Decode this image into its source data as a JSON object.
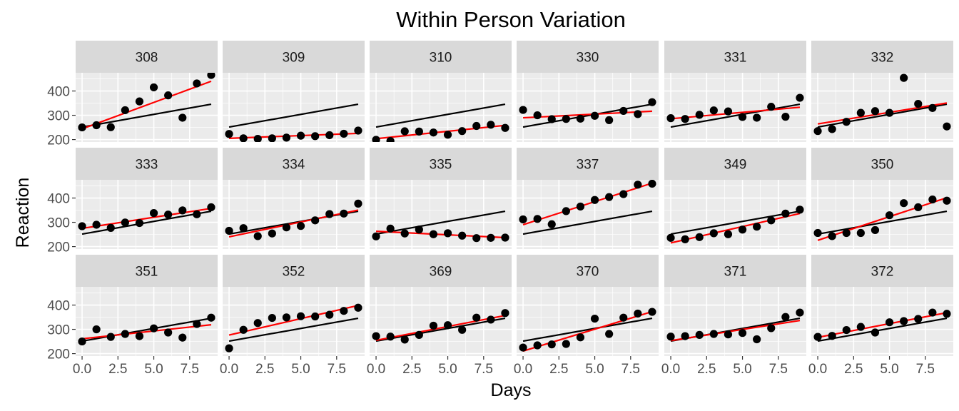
{
  "chart_data": {
    "type": "scatter",
    "title": "Within Person Variation",
    "xlabel": "Days",
    "ylabel": "Reaction",
    "facet_layout": {
      "rows": 3,
      "cols": 6
    },
    "xlim": [
      -0.45,
      9.45
    ],
    "ylim": [
      190,
      475
    ],
    "x_ticks": [
      0,
      2.5,
      5,
      7.5
    ],
    "x_tick_labels": [
      "0.0",
      "2.5",
      "5.0",
      "7.5"
    ],
    "y_ticks": [
      200,
      300,
      400
    ],
    "y_tick_labels": [
      "200",
      "300",
      "400"
    ],
    "grid": true,
    "colors": {
      "panel_bg": "#ebebeb",
      "strip_bg": "#d9d9d9",
      "grid": "#ffffff",
      "points": "#000000",
      "individual_fit": "#ff0000",
      "overall_fit": "#000000"
    },
    "overall_fit": {
      "intercept": 251.4,
      "slope": 10.47
    },
    "x": [
      0,
      1,
      2,
      3,
      4,
      5,
      6,
      7,
      8,
      9
    ],
    "panels": [
      {
        "label": "308",
        "values": [
          250,
          259,
          251,
          321,
          357,
          415,
          382,
          290,
          431,
          466
        ],
        "fit": {
          "intercept": 244.2,
          "slope": 21.76
        }
      },
      {
        "label": "309",
        "values": [
          223,
          205,
          203,
          205,
          208,
          216,
          214,
          218,
          224,
          237
        ],
        "fit": {
          "intercept": 205.1,
          "slope": 2.26
        }
      },
      {
        "label": "310",
        "values": [
          199,
          194,
          234,
          233,
          229,
          220,
          235,
          256,
          261,
          248
        ],
        "fit": {
          "intercept": 203.5,
          "slope": 6.11
        }
      },
      {
        "label": "330",
        "values": [
          322,
          300,
          284,
          285,
          286,
          298,
          280,
          318,
          305,
          354
        ],
        "fit": {
          "intercept": 289.7,
          "slope": 3.01
        }
      },
      {
        "label": "331",
        "values": [
          288,
          285,
          302,
          320,
          316,
          293,
          290,
          335,
          294,
          372
        ],
        "fit": {
          "intercept": 285.7,
          "slope": 5.27
        }
      },
      {
        "label": "332",
        "values": [
          235,
          243,
          273,
          310,
          317,
          310,
          454,
          347,
          330,
          254
        ],
        "fit": {
          "intercept": 264.3,
          "slope": 9.57
        }
      },
      {
        "label": "333",
        "values": [
          284,
          290,
          277,
          299,
          297,
          338,
          332,
          349,
          333,
          362
        ],
        "fit": {
          "intercept": 275.0,
          "slope": 9.14
        }
      },
      {
        "label": "334",
        "values": [
          265,
          276,
          243,
          254,
          279,
          285,
          308,
          334,
          336,
          377
        ],
        "fit": {
          "intercept": 240.2,
          "slope": 12.25
        }
      },
      {
        "label": "335",
        "values": [
          242,
          274,
          254,
          270,
          251,
          255,
          245,
          235,
          236,
          237
        ],
        "fit": {
          "intercept": 263.0,
          "slope": -2.88
        }
      },
      {
        "label": "337",
        "values": [
          312,
          314,
          292,
          346,
          365,
          392,
          404,
          416,
          455,
          459
        ],
        "fit": {
          "intercept": 290.1,
          "slope": 19.03
        }
      },
      {
        "label": "349",
        "values": [
          236,
          230,
          239,
          255,
          251,
          270,
          282,
          308,
          336,
          352
        ],
        "fit": {
          "intercept": 215.1,
          "slope": 13.49
        }
      },
      {
        "label": "350",
        "values": [
          256,
          243,
          256,
          256,
          268,
          329,
          379,
          362,
          394,
          389
        ],
        "fit": {
          "intercept": 225.8,
          "slope": 19.5
        }
      },
      {
        "label": "351",
        "values": [
          250,
          300,
          269,
          281,
          272,
          304,
          287,
          266,
          322,
          348
        ],
        "fit": {
          "intercept": 261.1,
          "slope": 6.43
        }
      },
      {
        "label": "352",
        "values": [
          222,
          298,
          326,
          347,
          349,
          354,
          353,
          360,
          376,
          389
        ],
        "fit": {
          "intercept": 276.4,
          "slope": 13.57
        }
      },
      {
        "label": "369",
        "values": [
          272,
          270,
          258,
          277,
          315,
          317,
          298,
          348,
          340,
          367
        ],
        "fit": {
          "intercept": 254.9,
          "slope": 11.35
        }
      },
      {
        "label": "370",
        "values": [
          225,
          234,
          238,
          240,
          267,
          344,
          281,
          348,
          365,
          372
        ],
        "fit": {
          "intercept": 210.4,
          "slope": 18.06
        }
      },
      {
        "label": "371",
        "values": [
          270,
          272,
          277,
          281,
          279,
          285,
          259,
          305,
          351,
          369
        ],
        "fit": {
          "intercept": 253.6,
          "slope": 9.19
        }
      },
      {
        "label": "372",
        "values": [
          269,
          273,
          297,
          310,
          287,
          329,
          334,
          343,
          369,
          364
        ],
        "fit": {
          "intercept": 267.0,
          "slope": 11.3
        }
      }
    ]
  }
}
